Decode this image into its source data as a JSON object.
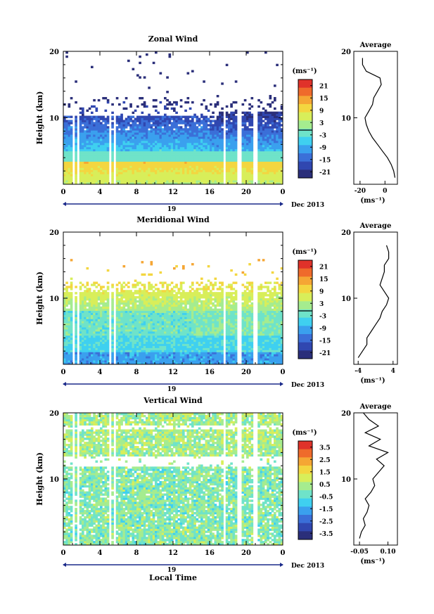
{
  "colors": {
    "scale": [
      "#2b2f7a",
      "#3047b0",
      "#3b6fd8",
      "#3aa0ee",
      "#3fd0f0",
      "#6fe3c9",
      "#a5ec8f",
      "#d8ee5a",
      "#f3d640",
      "#f5a634",
      "#ef6a2b",
      "#e0322a"
    ],
    "axis": "#000000"
  },
  "chart_data": [
    {
      "type": "heatmap",
      "title": "Zonal Wind",
      "xlabel": "",
      "ylabel": "Height (km)",
      "x_ticks": [
        "0",
        "4",
        "8",
        "12",
        "16",
        "20",
        "0"
      ],
      "y_ticks": [
        "10",
        "20"
      ],
      "ylim": [
        0,
        20
      ],
      "xlim": [
        0,
        24
      ],
      "date_row": {
        "day": "19",
        "month_year": "Dec 2013"
      },
      "colorbar": {
        "unit": "(ms⁻¹)",
        "ticks": [
          "21",
          "15",
          "9",
          "3",
          "-3",
          "-9",
          "-15",
          "-21"
        ],
        "range": [
          -24,
          24
        ]
      },
      "average": {
        "title": "Average",
        "x_ticks": [
          "-20",
          "0"
        ],
        "xlim": [
          -25,
          10
        ],
        "y_ticks": [
          "10",
          "20"
        ],
        "unit": "(ms⁻¹)"
      },
      "description_field": "zonal",
      "profile": [
        [
          8,
          1
        ],
        [
          7,
          2
        ],
        [
          5,
          3
        ],
        [
          2,
          4
        ],
        [
          -2,
          5
        ],
        [
          -6,
          6
        ],
        [
          -10,
          7
        ],
        [
          -13,
          8
        ],
        [
          -15,
          9
        ],
        [
          -16,
          10
        ],
        [
          -13,
          11
        ],
        [
          -10,
          12
        ],
        [
          -9,
          13
        ],
        [
          -6,
          14
        ],
        [
          -3,
          15
        ],
        [
          -4,
          16
        ],
        [
          -15,
          17
        ],
        [
          -18,
          18
        ],
        [
          -18,
          19
        ]
      ],
      "base_field": "zonal"
    },
    {
      "type": "heatmap",
      "title": "Meridional Wind",
      "xlabel": "",
      "ylabel": "Height (km)",
      "x_ticks": [
        "0",
        "4",
        "8",
        "12",
        "16",
        "20",
        "0"
      ],
      "y_ticks": [
        "10",
        "20"
      ],
      "ylim": [
        0,
        20
      ],
      "xlim": [
        0,
        24
      ],
      "date_row": {
        "day": "19",
        "month_year": "Dec 2013"
      },
      "colorbar": {
        "unit": "(ms⁻¹)",
        "ticks": [
          "21",
          "15",
          "9",
          "3",
          "-3",
          "-9",
          "-15",
          "-21"
        ],
        "range": [
          -24,
          24
        ]
      },
      "average": {
        "title": "Average",
        "x_ticks": [
          "-4",
          "4"
        ],
        "xlim": [
          -5,
          5
        ],
        "y_ticks": [
          "10",
          "20"
        ],
        "unit": "(ms⁻¹)"
      },
      "profile": [
        [
          -4,
          1
        ],
        [
          -3,
          2
        ],
        [
          -2,
          3
        ],
        [
          -2,
          4
        ],
        [
          -1,
          5
        ],
        [
          0,
          6
        ],
        [
          1,
          7
        ],
        [
          1.5,
          8
        ],
        [
          2.5,
          9
        ],
        [
          3,
          10
        ],
        [
          2,
          11
        ],
        [
          1,
          12
        ],
        [
          1.5,
          13
        ],
        [
          2,
          14
        ],
        [
          2,
          15
        ],
        [
          3,
          16
        ],
        [
          3,
          17
        ],
        [
          2.5,
          18
        ]
      ],
      "base_field": "meridional"
    },
    {
      "type": "heatmap",
      "title": "Vertical Wind",
      "xlabel": "Local Time",
      "ylabel": "Height (km)",
      "x_ticks": [
        "0",
        "4",
        "8",
        "12",
        "16",
        "20",
        "0"
      ],
      "y_ticks": [
        "10",
        "20"
      ],
      "ylim": [
        0,
        20
      ],
      "xlim": [
        0,
        24
      ],
      "date_row": {
        "day": "19",
        "month_year": "Dec 2013"
      },
      "colorbar": {
        "unit": "(ms⁻¹)",
        "ticks": [
          "3.5",
          "2.5",
          "1.5",
          "0.5",
          "-0.5",
          "-1.5",
          "-2.5",
          "-3.5"
        ],
        "range": [
          -4,
          4
        ]
      },
      "average": {
        "title": "Average",
        "x_ticks": [
          "-0.05",
          "0.10"
        ],
        "xlim": [
          -0.08,
          0.15
        ],
        "y_ticks": [
          "10",
          "20"
        ],
        "unit": "(ms⁻¹)"
      },
      "profile": [
        [
          -0.05,
          1
        ],
        [
          -0.04,
          2
        ],
        [
          -0.02,
          3
        ],
        [
          -0.03,
          4
        ],
        [
          -0.01,
          5
        ],
        [
          0.0,
          6
        ],
        [
          -0.02,
          7
        ],
        [
          0.01,
          8
        ],
        [
          0.03,
          9
        ],
        [
          0.02,
          10
        ],
        [
          0.05,
          11
        ],
        [
          0.08,
          12
        ],
        [
          0.04,
          13
        ],
        [
          0.1,
          14
        ],
        [
          0.0,
          15
        ],
        [
          0.06,
          16
        ],
        [
          -0.02,
          17
        ],
        [
          0.05,
          18
        ],
        [
          0.0,
          19
        ],
        [
          -0.03,
          20
        ]
      ],
      "base_field": "vertical"
    }
  ]
}
